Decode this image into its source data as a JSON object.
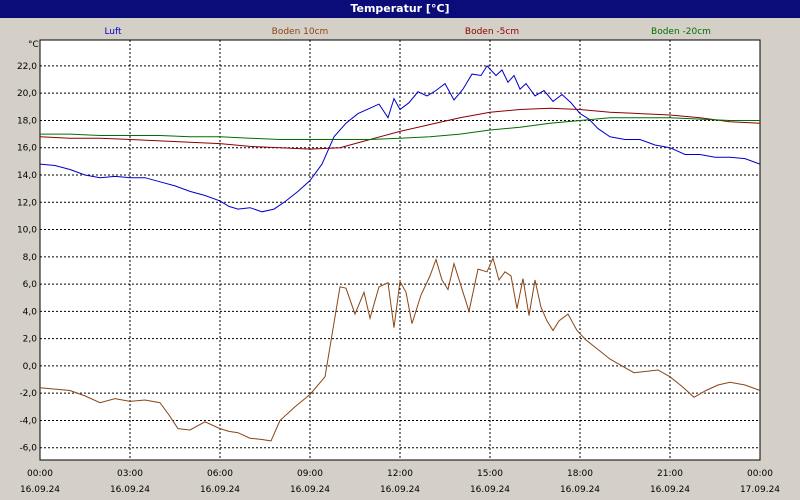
{
  "window": {
    "title": "Temperatur [°C]"
  },
  "chart_data": {
    "type": "line",
    "title": "Temperatur [°C]",
    "ylabel": "°C",
    "ylim": [
      -6.9,
      23.9
    ],
    "grid": true,
    "legend_placement": "top",
    "y_ticks": [
      "22,0",
      "20,0",
      "18,0",
      "16,0",
      "14,0",
      "12,0",
      "10,0",
      "8,0",
      "6,0",
      "4,0",
      "2,0",
      "0,0",
      "-2,0",
      "-4,0",
      "-6,0"
    ],
    "x_ticks": [
      {
        "time": "00:00",
        "date": "16.09.24"
      },
      {
        "time": "03:00",
        "date": "16.09.24"
      },
      {
        "time": "06:00",
        "date": "16.09.24"
      },
      {
        "time": "09:00",
        "date": "16.09.24"
      },
      {
        "time": "12:00",
        "date": "16.09.24"
      },
      {
        "time": "15:00",
        "date": "16.09.24"
      },
      {
        "time": "18:00",
        "date": "16.09.24"
      },
      {
        "time": "21:00",
        "date": "16.09.24"
      },
      {
        "time": "00:00",
        "date": "17.09.24"
      }
    ],
    "x_unit": "hours since 16.09.24 00:00",
    "series": [
      {
        "name": "Luft",
        "color": "#0000cc",
        "x": [
          0,
          0.5,
          1,
          1.5,
          2,
          2.5,
          3,
          3.5,
          4,
          4.5,
          5,
          5.5,
          6,
          6.3,
          6.6,
          7,
          7.4,
          7.8,
          8.2,
          8.6,
          9,
          9.4,
          9.8,
          10.2,
          10.6,
          11,
          11.3,
          11.6,
          11.8,
          12,
          12.3,
          12.6,
          12.9,
          13.2,
          13.5,
          13.8,
          14.1,
          14.4,
          14.7,
          14.9,
          15.2,
          15.4,
          15.6,
          15.8,
          16,
          16.2,
          16.5,
          16.8,
          17.1,
          17.4,
          17.7,
          18,
          18.3,
          18.6,
          19,
          19.5,
          20,
          20.5,
          21,
          21.5,
          22,
          22.5,
          23,
          23.5,
          24
        ],
        "y": [
          14.8,
          14.7,
          14.4,
          14.0,
          13.8,
          13.9,
          13.8,
          13.8,
          13.5,
          13.2,
          12.8,
          12.5,
          12.1,
          11.7,
          11.5,
          11.6,
          11.3,
          11.5,
          12.1,
          12.8,
          13.6,
          14.8,
          16.8,
          17.8,
          18.5,
          18.9,
          19.2,
          18.2,
          19.6,
          18.8,
          19.3,
          20.1,
          19.8,
          20.2,
          20.7,
          19.5,
          20.3,
          21.4,
          21.3,
          22.0,
          21.3,
          21.7,
          20.8,
          21.3,
          20.3,
          20.7,
          19.8,
          20.2,
          19.4,
          19.9,
          19.3,
          18.5,
          18.1,
          17.4,
          16.8,
          16.6,
          16.6,
          16.2,
          16.0,
          15.5,
          15.5,
          15.3,
          15.3,
          15.2,
          14.8
        ]
      },
      {
        "name": "Boden 10cm",
        "color": "#8b4513",
        "x": [
          0,
          0.5,
          1,
          1.5,
          2,
          2.5,
          3,
          3.5,
          4,
          4.3,
          4.6,
          5,
          5.5,
          6,
          6.3,
          6.6,
          7,
          7.4,
          7.7,
          8,
          8.5,
          9,
          9.5,
          10,
          10.2,
          10.5,
          10.8,
          11,
          11.3,
          11.6,
          11.8,
          12,
          12.2,
          12.4,
          12.7,
          13,
          13.2,
          13.4,
          13.6,
          13.8,
          14,
          14.3,
          14.6,
          14.9,
          15.1,
          15.3,
          15.5,
          15.7,
          15.9,
          16.1,
          16.3,
          16.5,
          16.7,
          16.9,
          17.1,
          17.3,
          17.6,
          17.9,
          18.2,
          18.6,
          19,
          19.4,
          19.8,
          20.2,
          20.6,
          21,
          21.4,
          21.8,
          22.2,
          22.6,
          23,
          23.5,
          24
        ],
        "y": [
          -1.6,
          -1.7,
          -1.8,
          -2.2,
          -2.7,
          -2.4,
          -2.6,
          -2.5,
          -2.7,
          -3.6,
          -4.6,
          -4.7,
          -4.1,
          -4.6,
          -4.8,
          -4.9,
          -5.3,
          -5.4,
          -5.5,
          -4.0,
          -3.0,
          -2.1,
          -0.8,
          5.8,
          5.7,
          3.8,
          5.4,
          3.5,
          5.8,
          6.1,
          2.8,
          6.2,
          5.4,
          3.1,
          5.2,
          6.6,
          7.8,
          6.3,
          5.6,
          7.5,
          6.1,
          4.0,
          7.1,
          6.9,
          7.9,
          6.3,
          6.9,
          6.6,
          4.2,
          6.4,
          3.7,
          6.3,
          4.3,
          3.3,
          2.6,
          3.3,
          3.8,
          2.6,
          1.9,
          1.2,
          0.5,
          0.0,
          -0.5,
          -0.4,
          -0.3,
          -0.8,
          -1.5,
          -2.3,
          -1.8,
          -1.4,
          -1.2,
          -1.4,
          -1.8
        ]
      },
      {
        "name": "Boden -5cm",
        "color": "#8b0000",
        "x": [
          0,
          1,
          2,
          3,
          4,
          5,
          6,
          7,
          8,
          9,
          10,
          11,
          12,
          13,
          14,
          15,
          16,
          17,
          18,
          19,
          20,
          21,
          22,
          23,
          24
        ],
        "y": [
          16.8,
          16.7,
          16.7,
          16.6,
          16.5,
          16.4,
          16.3,
          16.1,
          16.0,
          15.9,
          16.0,
          16.6,
          17.2,
          17.7,
          18.2,
          18.6,
          18.8,
          18.9,
          18.8,
          18.6,
          18.5,
          18.4,
          18.2,
          17.9,
          17.8
        ]
      },
      {
        "name": "Boden -20cm",
        "color": "#007000",
        "x": [
          0,
          1,
          2,
          3,
          4,
          5,
          6,
          7,
          8,
          9,
          10,
          11,
          12,
          13,
          14,
          15,
          16,
          17,
          18,
          19,
          20,
          21,
          22,
          23,
          24
        ],
        "y": [
          17.0,
          17.0,
          16.9,
          16.9,
          16.9,
          16.8,
          16.8,
          16.7,
          16.6,
          16.6,
          16.6,
          16.6,
          16.7,
          16.8,
          17.0,
          17.3,
          17.5,
          17.8,
          18.0,
          18.2,
          18.2,
          18.2,
          18.1,
          18.0,
          18.0
        ]
      }
    ]
  }
}
